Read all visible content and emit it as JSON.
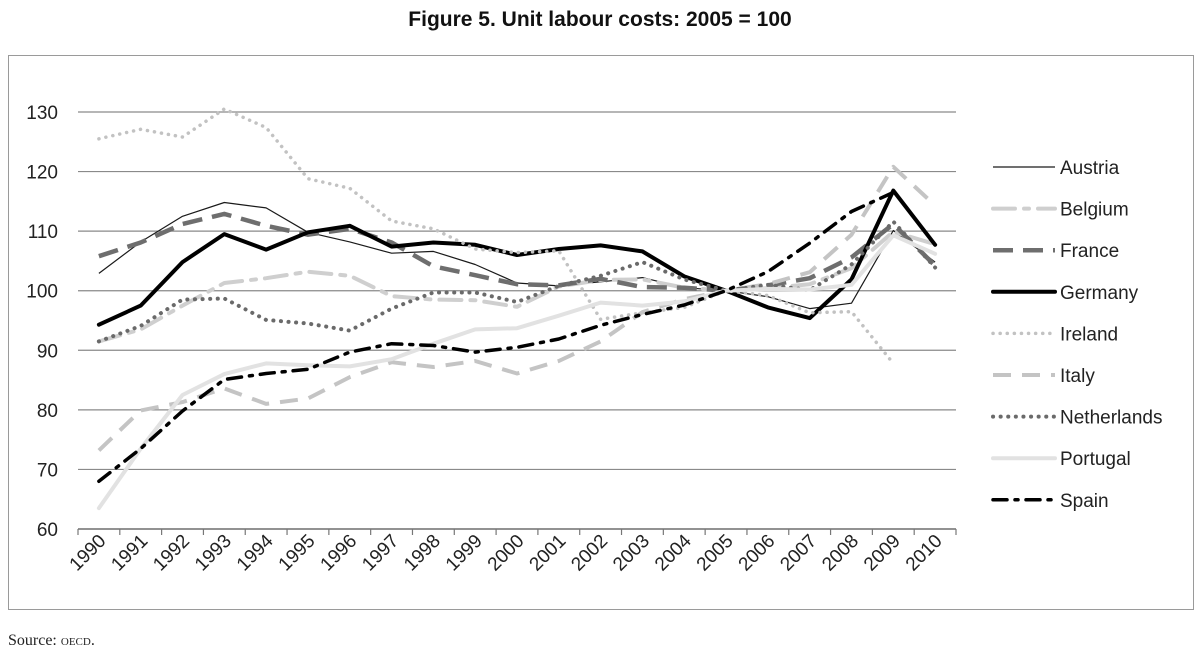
{
  "title": "Figure 5. Unit labour costs: 2005 = 100",
  "source": {
    "label": "Source:",
    "text": "oecd."
  },
  "chart_data": {
    "type": "line",
    "title": "Figure 5. Unit labour costs: 2005 = 100",
    "xlabel": "",
    "ylabel": "",
    "x": [
      "1990",
      "1991",
      "1992",
      "1993",
      "1994",
      "1995",
      "1996",
      "1997",
      "1998",
      "1999",
      "2000",
      "2001",
      "2002",
      "2003",
      "2004",
      "2005",
      "2006",
      "2007",
      "2008",
      "2009",
      "2010"
    ],
    "ylim": [
      60,
      130
    ],
    "yticks": [
      60,
      70,
      80,
      90,
      100,
      110,
      120,
      130
    ],
    "grid": true,
    "legend_position": "right",
    "series": [
      {
        "name": "Austria",
        "color": "#1a1a1a",
        "style": "thin-solid",
        "values": [
          102.9,
          108.2,
          112.5,
          114.8,
          113.9,
          109.8,
          108.2,
          106.3,
          106.6,
          104.4,
          101.3,
          100.8,
          101.5,
          102.2,
          100.5,
          100,
          99.0,
          97.0,
          97.9,
          110.1,
          104.8
        ]
      },
      {
        "name": "Belgium",
        "color": "#cfcfcf",
        "style": "dash-dot",
        "values": [
          91.5,
          93.5,
          97.5,
          101.3,
          102.1,
          103.2,
          102.5,
          99.1,
          98.5,
          98.4,
          97.3,
          100.7,
          101.8,
          101.9,
          100.5,
          100,
          100.4,
          101.1,
          103.8,
          109.9,
          107.8
        ]
      },
      {
        "name": "France",
        "color": "#6e6e6e",
        "style": "long-dash",
        "values": [
          105.8,
          108.1,
          111.2,
          112.9,
          110.9,
          109.4,
          110.4,
          108.1,
          104.1,
          102.6,
          101.1,
          100.9,
          102.0,
          100.6,
          100.5,
          100,
          100.9,
          102.1,
          105.6,
          111.2,
          104.2
        ]
      },
      {
        "name": "Germany",
        "color": "#000000",
        "style": "thick-solid",
        "values": [
          94.3,
          97.5,
          104.8,
          109.5,
          106.9,
          109.8,
          110.9,
          107.4,
          108.1,
          107.7,
          106.0,
          107.0,
          107.6,
          106.6,
          102.4,
          100,
          97.2,
          95.4,
          101.9,
          116.8,
          107.7
        ]
      },
      {
        "name": "Ireland",
        "color": "#c2c2c2",
        "style": "dotted",
        "values": [
          125.5,
          127.1,
          125.8,
          130.5,
          127.4,
          118.8,
          117.2,
          111.7,
          110.4,
          107.0,
          106.4,
          106.7,
          95.2,
          96.3,
          97.2,
          100,
          99.2,
          96.3,
          96.5,
          87.8,
          null
        ]
      },
      {
        "name": "Italy",
        "color": "#c4c4c4",
        "style": "dash",
        "values": [
          73.2,
          79.9,
          81.3,
          83.6,
          81.0,
          81.9,
          85.5,
          88.0,
          87.2,
          88.2,
          86.1,
          88.2,
          91.5,
          96.4,
          98.6,
          100,
          101.1,
          103.1,
          109.4,
          120.8,
          114.3
        ]
      },
      {
        "name": "Netherlands",
        "color": "#6a6a6a",
        "style": "round-dot",
        "values": [
          91.5,
          94.1,
          98.5,
          98.7,
          95.1,
          94.5,
          93.3,
          97.0,
          99.7,
          99.7,
          98.1,
          100.8,
          102.5,
          104.8,
          101.9,
          100,
          101.0,
          100.1,
          104.4,
          111.6,
          103.9
        ]
      },
      {
        "name": "Portugal",
        "color": "#e2e2e2",
        "style": "solid",
        "values": [
          63.5,
          73.5,
          82.5,
          86.0,
          87.8,
          87.5,
          87.3,
          88.5,
          91.1,
          93.5,
          93.7,
          95.8,
          98.0,
          97.5,
          98.2,
          100,
          100.3,
          100.2,
          101.0,
          109.3,
          106.2
        ]
      },
      {
        "name": "Spain",
        "color": "#000000",
        "style": "dash-dot-bold",
        "values": [
          68.0,
          73.5,
          79.8,
          85.1,
          86.1,
          86.8,
          89.7,
          91.1,
          90.8,
          89.7,
          90.5,
          91.9,
          94.2,
          96.0,
          97.6,
          100,
          103.2,
          108.0,
          113.3,
          116.5,
          null
        ]
      }
    ]
  }
}
